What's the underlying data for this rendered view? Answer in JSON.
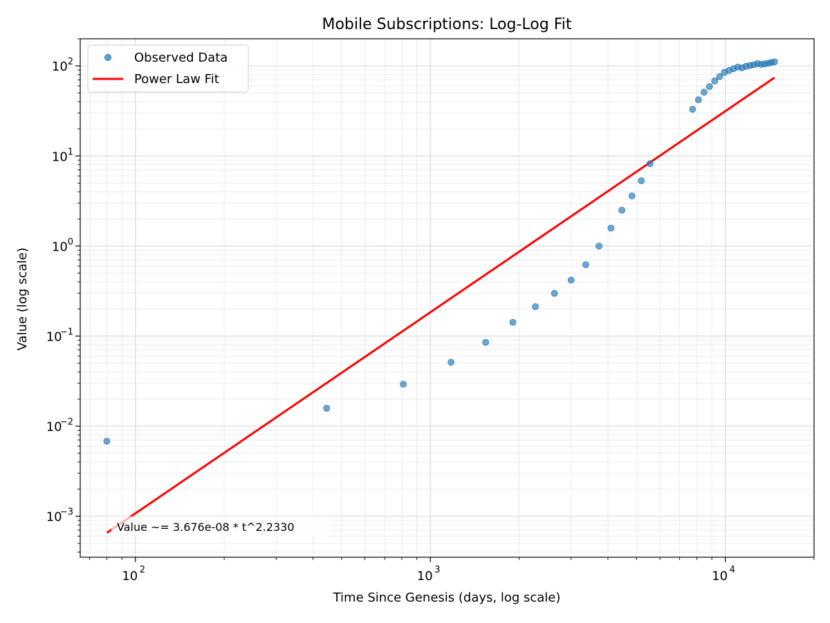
{
  "chart_data": {
    "type": "scatter",
    "title": "Mobile Subscriptions: Log-Log Fit",
    "xlabel": "Time Since Genesis (days, log scale)",
    "ylabel": "Value (log scale)",
    "xscale": "log",
    "yscale": "log",
    "xlim": [
      65,
      20000
    ],
    "ylim": [
      0.00035,
      200
    ],
    "grid": true,
    "legend_position": "top-left",
    "x_ticks": [
      {
        "base": "10",
        "exp": "2",
        "value": 100
      },
      {
        "base": "10",
        "exp": "3",
        "value": 1000
      },
      {
        "base": "10",
        "exp": "4",
        "value": 10000
      }
    ],
    "y_ticks": [
      {
        "base": "10",
        "exp": "−3",
        "value": 0.001
      },
      {
        "base": "10",
        "exp": "−2",
        "value": 0.01
      },
      {
        "base": "10",
        "exp": "−1",
        "value": 0.1
      },
      {
        "base": "10",
        "exp": "0",
        "value": 1
      },
      {
        "base": "10",
        "exp": "1",
        "value": 10
      },
      {
        "base": "10",
        "exp": "2",
        "value": 100
      }
    ],
    "series": [
      {
        "name": "Observed Data",
        "kind": "scatter",
        "color": "#1f77b4",
        "x": [
          80,
          445,
          810,
          1175,
          1540,
          1905,
          2270,
          2635,
          3000,
          3365,
          3730,
          4095,
          4460,
          4825,
          5190,
          5555,
          7745,
          8110,
          8475,
          8840,
          9205,
          9570,
          9935,
          10300,
          10665,
          11030,
          11395,
          11760,
          12125,
          12490,
          12855,
          13220,
          13585,
          13950,
          14315,
          14680
        ],
        "y": [
          0.0068,
          0.0158,
          0.0292,
          0.0512,
          0.085,
          0.142,
          0.212,
          0.298,
          0.418,
          0.62,
          1.0,
          1.58,
          2.5,
          3.6,
          5.3,
          8.2,
          33,
          42,
          51,
          59,
          68,
          76,
          85,
          89,
          93,
          97,
          95,
          99,
          101,
          103,
          106,
          104,
          105,
          107,
          109,
          111
        ]
      },
      {
        "name": "Power Law Fit",
        "kind": "line",
        "color": "#ff0000",
        "coefficient": 3.676e-08,
        "exponent": 2.233,
        "x": [
          80,
          14680
        ]
      }
    ],
    "annotation": "Value ~= 3.676e-08 * t^2.2330"
  }
}
